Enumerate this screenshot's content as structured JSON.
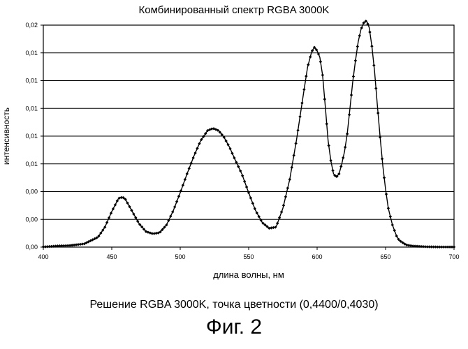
{
  "chart_data": {
    "type": "line",
    "title": "Комбинированный спектр RGBA 3000K",
    "xlabel": "длина волны, нм",
    "ylabel": "интенсивность",
    "xlim": [
      400,
      700
    ],
    "ylim": [
      0,
      0.02
    ],
    "x_ticks": [
      400,
      450,
      500,
      550,
      600,
      650,
      700
    ],
    "x_tick_labels": [
      "400",
      "450",
      "500",
      "550",
      "600",
      "650",
      "700"
    ],
    "y_ticks": [
      0,
      0.0025,
      0.005,
      0.0075,
      0.01,
      0.0125,
      0.015,
      0.0175,
      0.02
    ],
    "y_tick_labels": [
      "0,00",
      "0,00",
      "0,00",
      "0,01",
      "0,01",
      "0,01",
      "0,01",
      "0,01",
      "0,02"
    ],
    "grid": "horizontal",
    "legend": "none",
    "series": [
      {
        "color": "#000000",
        "marker": "diamond",
        "x": [
          400,
          410,
          420,
          430,
          440,
          445,
          450,
          455,
          458,
          460,
          465,
          470,
          475,
          480,
          485,
          490,
          495,
          500,
          505,
          510,
          515,
          520,
          524,
          528,
          532,
          536,
          540,
          545,
          550,
          555,
          560,
          565,
          570,
          575,
          580,
          585,
          590,
          593,
          596,
          598,
          600,
          602,
          604,
          606,
          608,
          610,
          612,
          614,
          616,
          618,
          620,
          622,
          624,
          626,
          628,
          630,
          632,
          634,
          636,
          638,
          640,
          642,
          644,
          646,
          648,
          650,
          652,
          655,
          658,
          660,
          665,
          670,
          680,
          690,
          700
        ],
        "y": [
          2e-05,
          0.0001,
          0.00015,
          0.0003,
          0.0009,
          0.0018,
          0.0032,
          0.0044,
          0.0045,
          0.0043,
          0.0032,
          0.0021,
          0.0014,
          0.0012,
          0.0013,
          0.002,
          0.0033,
          0.0049,
          0.0066,
          0.0082,
          0.0096,
          0.0105,
          0.0107,
          0.0105,
          0.0099,
          0.009,
          0.0079,
          0.0066,
          0.0049,
          0.0033,
          0.0022,
          0.0017,
          0.0018,
          0.0035,
          0.0061,
          0.0097,
          0.0138,
          0.0162,
          0.0176,
          0.018,
          0.0177,
          0.0171,
          0.0155,
          0.0126,
          0.0096,
          0.0078,
          0.0066,
          0.0063,
          0.0066,
          0.0075,
          0.0086,
          0.0102,
          0.0125,
          0.0149,
          0.0168,
          0.0185,
          0.0196,
          0.0202,
          0.0204,
          0.0198,
          0.0181,
          0.0158,
          0.0128,
          0.0099,
          0.0073,
          0.0052,
          0.0035,
          0.002,
          0.001,
          0.0006,
          0.0002,
          0.0001,
          3e-05,
          1e-05,
          1e-05
        ]
      }
    ]
  },
  "caption": "Решение RGBA 3000K, точка цветности (0,4400/0,4030)",
  "figure_label": "Фиг. 2"
}
